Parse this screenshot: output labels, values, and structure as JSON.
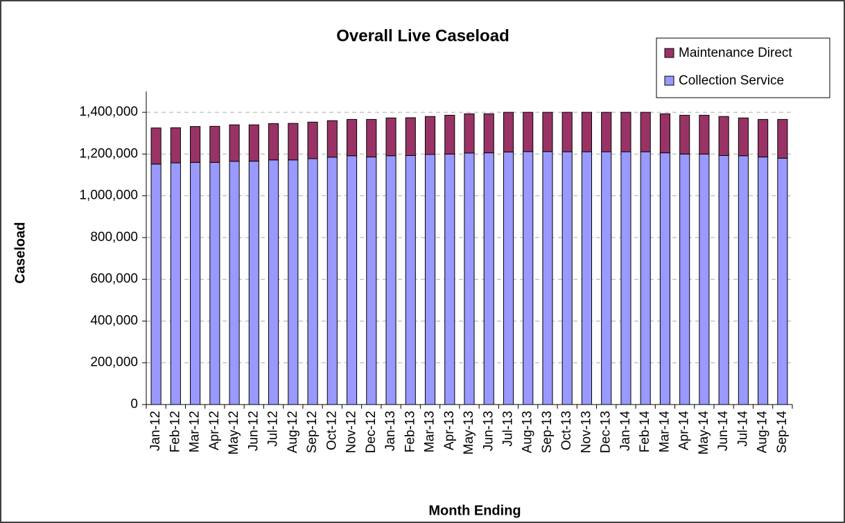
{
  "chart_data": {
    "type": "stacked_bar",
    "title": "Overall Live Caseload",
    "x_label": "Month Ending",
    "y_label": "Caseload",
    "categories": [
      "Jan-12",
      "Feb-12",
      "Mar-12",
      "Apr-12",
      "May-12",
      "Jun-12",
      "Jul-12",
      "Aug-12",
      "Sep-12",
      "Oct-12",
      "Nov-12",
      "Dec-12",
      "Jan-13",
      "Feb-13",
      "Mar-13",
      "Apr-13",
      "May-13",
      "Jun-13",
      "Jul-13",
      "Aug-13",
      "Sep-13",
      "Oct-13",
      "Nov-13",
      "Dec-13",
      "Jan-14",
      "Feb-14",
      "Mar-14",
      "Apr-14",
      "May-14",
      "Jun-14",
      "Jul-14",
      "Aug-14",
      "Sep-14"
    ],
    "series": [
      {
        "name": "Collection Service",
        "color": "#9999ff",
        "values": [
          1152000,
          1158000,
          1160000,
          1160000,
          1165000,
          1166000,
          1172000,
          1172000,
          1178000,
          1185000,
          1192000,
          1186000,
          1192000,
          1193000,
          1198000,
          1200000,
          1205000,
          1206000,
          1210000,
          1212000,
          1212000,
          1211000,
          1211000,
          1211000,
          1211000,
          1211000,
          1206000,
          1200000,
          1200000,
          1193000,
          1192000,
          1186000,
          1180000
        ]
      },
      {
        "name": "Maintenance Direct",
        "color": "#993366",
        "values": [
          173000,
          168000,
          172000,
          173000,
          175000,
          174000,
          174000,
          175000,
          175000,
          175000,
          174000,
          180000,
          181000,
          181000,
          182000,
          186000,
          188000,
          187000,
          190000,
          188000,
          188000,
          189000,
          189000,
          189000,
          189000,
          189000,
          187000,
          186000,
          186000,
          187000,
          181000,
          180000,
          186000
        ]
      }
    ],
    "ylim": [
      0,
      1500000
    ],
    "yticks": [
      0,
      {
        "value": 200000,
        "label": "200,000"
      },
      {
        "value": 400000,
        "label": "400,000"
      },
      {
        "value": 600000,
        "label": "600,000"
      },
      {
        "value": 800000,
        "label": "800,000"
      },
      {
        "value": 1000000,
        "label": "1,000,000"
      },
      {
        "value": 1200000,
        "label": "1,200,000"
      },
      {
        "value": 1400000,
        "label": "1,400,000"
      }
    ],
    "grid": true,
    "legend": "top-right"
  }
}
